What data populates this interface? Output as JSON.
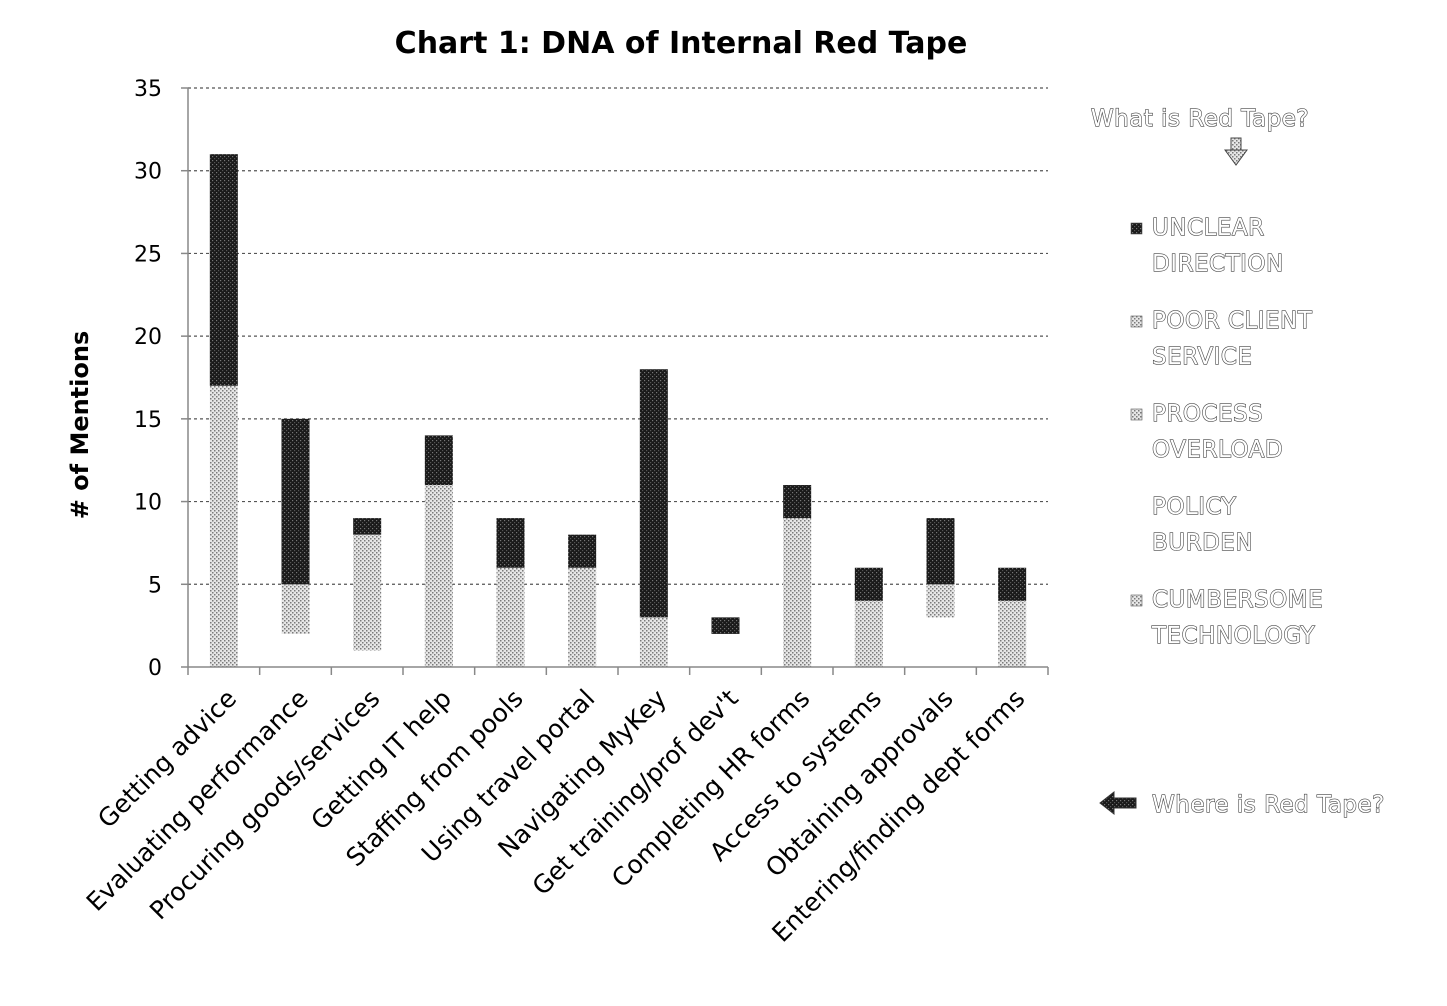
{
  "chart_data": {
    "type": "bar",
    "stacked": true,
    "title": "Chart 1: DNA of Internal Red Tape",
    "xlabel": "",
    "ylabel": "# of Mentions",
    "ylim": [
      0,
      35
    ],
    "yticks": [
      0,
      5,
      10,
      15,
      20,
      25,
      30,
      35
    ],
    "grid": true,
    "legend_position": "right",
    "legend_header": "What is Red Tape?",
    "legend_footer": "Where is Red Tape?",
    "categories": [
      "Getting advice",
      "Evaluating performance",
      "Procuring goods/services",
      "Getting IT help",
      "Staffing from pools",
      "Using travel portal",
      "Navigating MyKey",
      "Get training/prof dev't",
      "Completing HR forms",
      "Access to systems",
      "Obtaining approvals",
      "Entering/finding dept forms"
    ],
    "series": [
      {
        "name": "CUMBERSOME TECHNOLOGY",
        "legend_lines": [
          "CUMBERSOME",
          "TECHNOLOGY"
        ],
        "values": [
          0,
          0,
          0,
          0,
          1,
          0,
          0,
          0,
          1,
          0,
          0,
          1
        ]
      },
      {
        "name": "POLICY BURDEN",
        "legend_lines": [
          "POLICY",
          "BURDEN"
        ],
        "values": [
          0,
          2,
          1,
          0,
          0,
          0,
          0,
          0,
          0,
          0,
          3,
          0
        ]
      },
      {
        "name": "PROCESS OVERLOAD",
        "legend_lines": [
          "PROCESS",
          "OVERLOAD"
        ],
        "values": [
          17,
          3,
          5,
          11,
          5,
          6,
          3,
          0,
          8,
          4,
          2,
          3
        ]
      },
      {
        "name": "POOR CLIENT SERVICE",
        "legend_lines": [
          "POOR CLIENT",
          "SERVICE"
        ],
        "values": [
          0,
          0,
          2,
          0,
          0,
          0,
          0,
          0,
          0,
          0,
          0,
          0
        ]
      },
      {
        "name": "UNCLEAR DIRECTION",
        "legend_lines": [
          "UNCLEAR",
          "DIRECTION"
        ],
        "values": [
          14,
          10,
          1,
          3,
          3,
          2,
          15,
          1,
          2,
          2,
          4,
          2
        ]
      }
    ],
    "series_fills": [
      "#e8e8e8",
      "#ffffff",
      "#c8c8c8",
      "#f0f0f0",
      "#1e1e1e"
    ],
    "series_textures": [
      "dots",
      "none",
      "dots",
      "dots",
      "crosshatch"
    ],
    "base_offsets": [
      0,
      0,
      0,
      0,
      0,
      0,
      0,
      2,
      0,
      0,
      0,
      0
    ]
  }
}
